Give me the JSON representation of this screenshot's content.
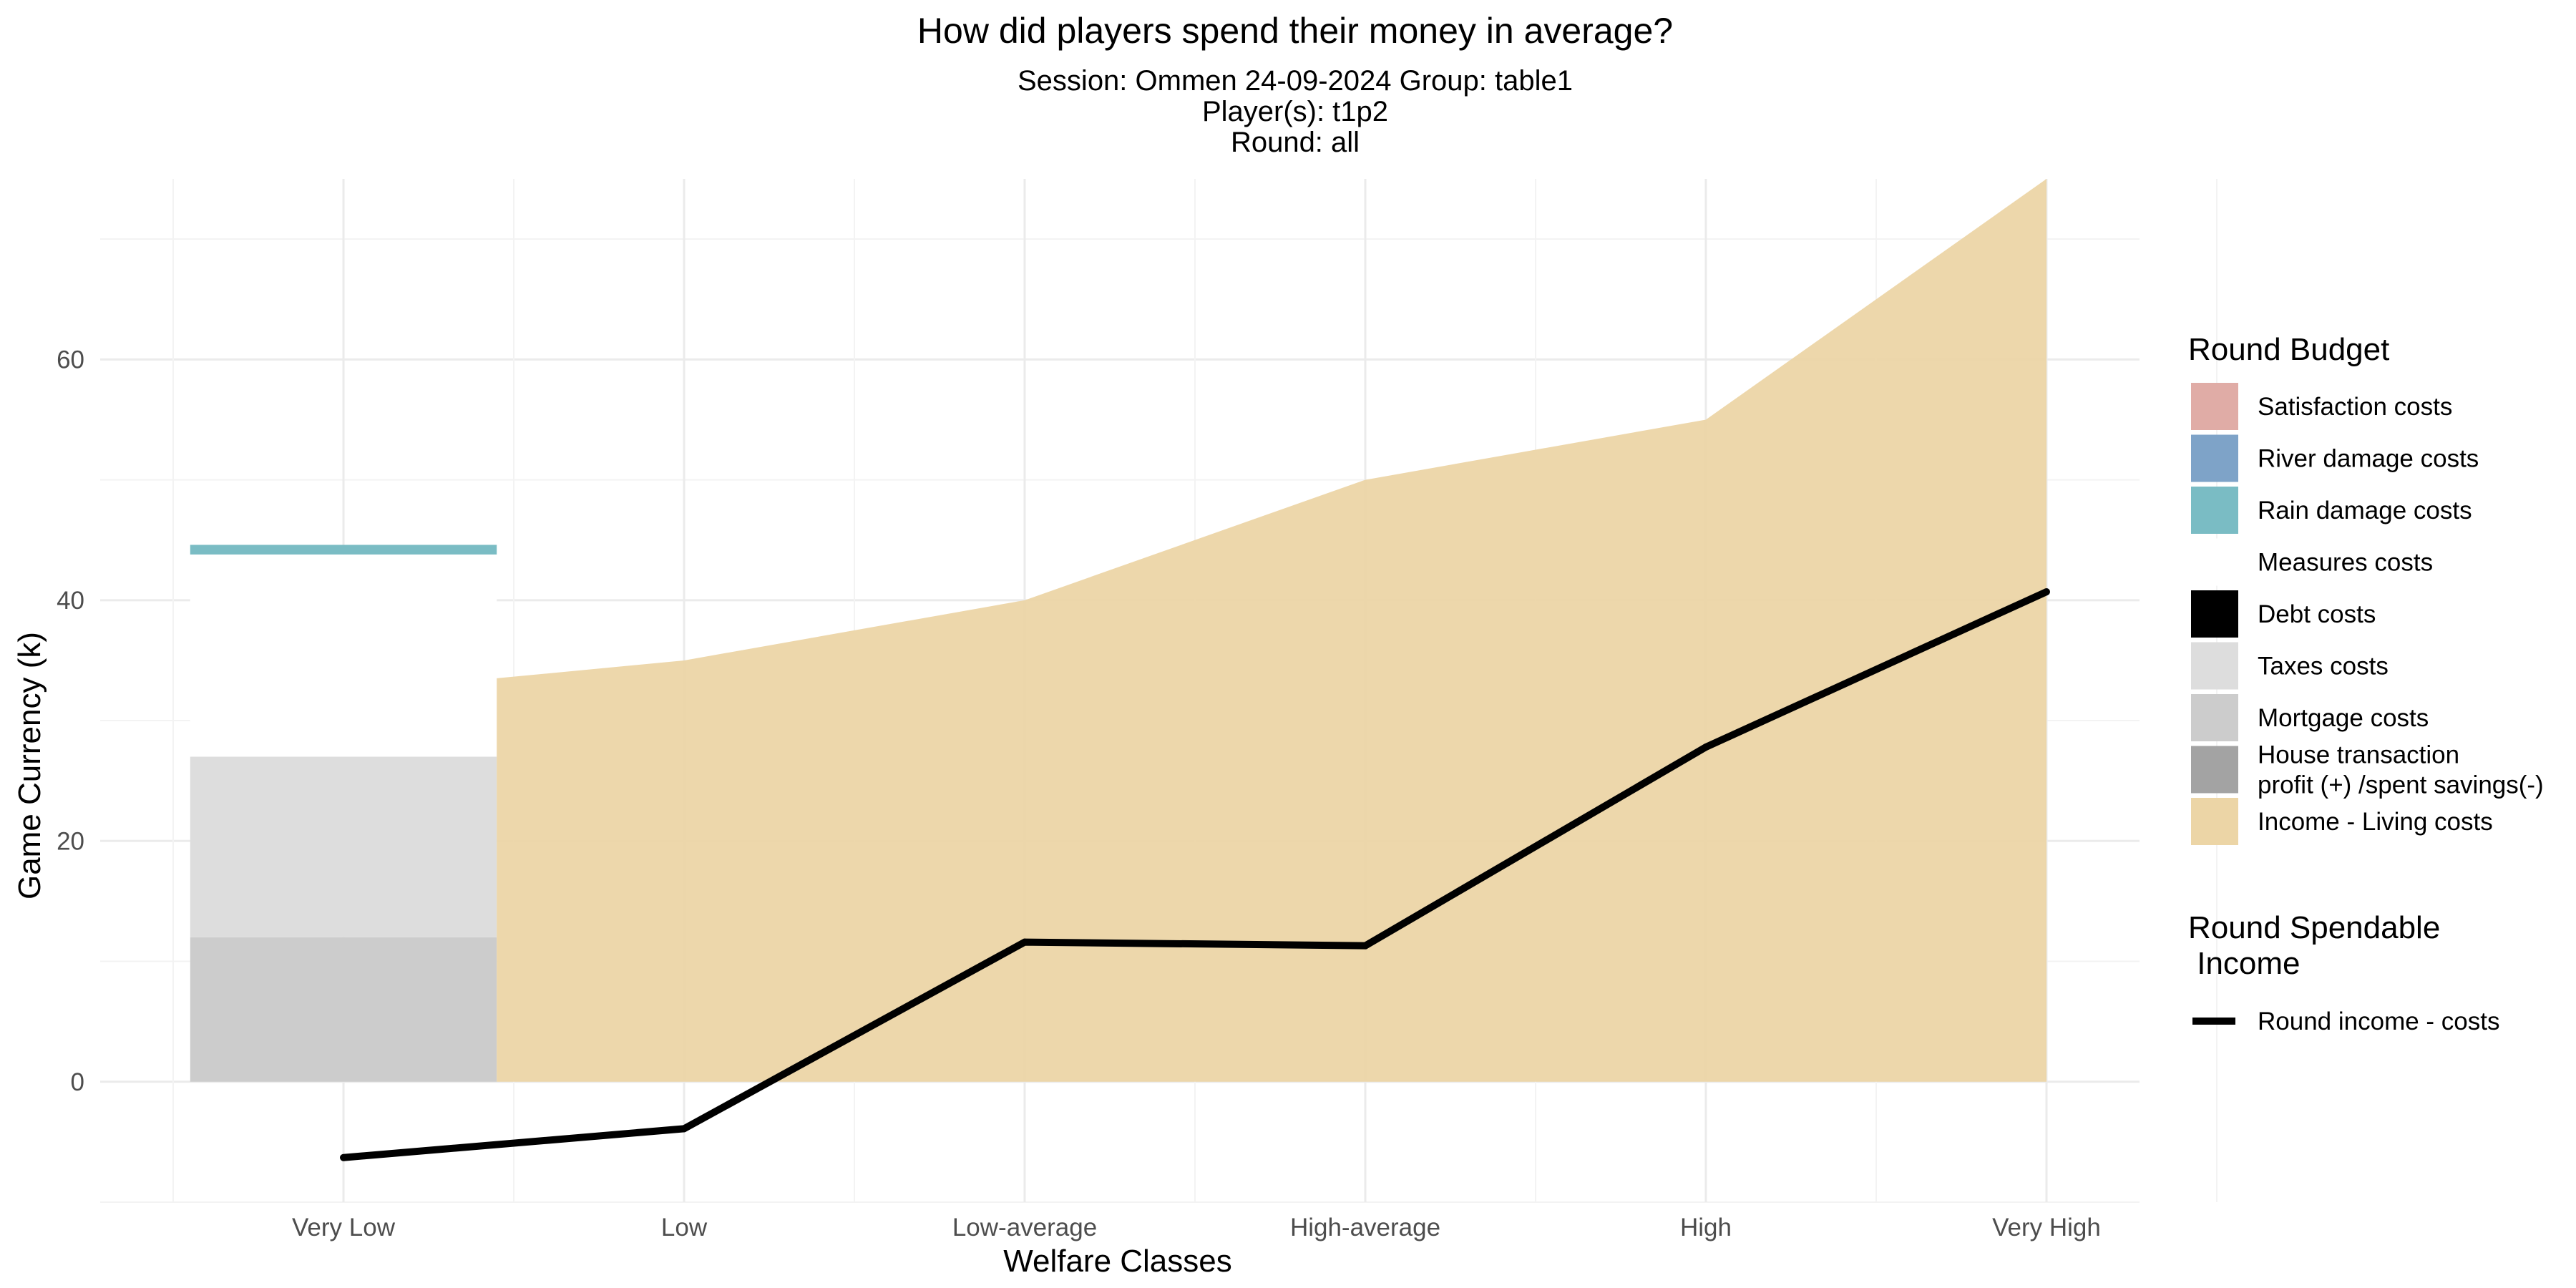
{
  "chart_data": {
    "type": "area",
    "title": "How did players spend their money in average?",
    "subtitle_lines": [
      "Session: Ommen 24-09-2024 Group: table1",
      "Player(s): t1p2",
      "Round: all"
    ],
    "xlabel": "Welfare Classes",
    "ylabel": "Game Currency (k)",
    "categories": [
      "Very Low",
      "Low",
      "Low-average",
      "High-average",
      "High",
      "Very High"
    ],
    "ylim": [
      -10,
      75
    ],
    "yticks": [
      0,
      20,
      40,
      60
    ],
    "grid": true,
    "stacked_bar": {
      "category": "Very Low",
      "segments": [
        {
          "name": "Mortgage costs",
          "bottom": 0,
          "top": 12,
          "color": "#cccccc"
        },
        {
          "name": "Taxes costs",
          "bottom": 12,
          "top": 27,
          "color": "#dddddd"
        },
        {
          "name": "Measures costs",
          "bottom": 27,
          "top": 43.8,
          "color": "#ffffff"
        },
        {
          "name": "Rain damage costs",
          "bottom": 43.8,
          "top": 44.6,
          "color": "#7abcc4"
        }
      ]
    },
    "area_series": {
      "name": "Income - Living costs",
      "color": "#ecd5a6",
      "x": [
        "Very Low",
        "Low",
        "Low-average",
        "High-average",
        "High",
        "Very High"
      ],
      "values": [
        32.3,
        35,
        40,
        50,
        55,
        75
      ]
    },
    "line_series": {
      "name": "Round income - costs",
      "color": "#000000",
      "x": [
        "Very Low",
        "Low",
        "Low-average",
        "High-average",
        "High",
        "Very High"
      ],
      "values": [
        -6.3,
        -3.9,
        11.6,
        11.3,
        27.8,
        40.7
      ]
    },
    "legend": {
      "placement": "right",
      "budget_title": "Round Budget",
      "budget_items": [
        {
          "label": "Satisfaction costs",
          "color": "#e0aca6"
        },
        {
          "label": "River damage costs",
          "color": "#7ea3c8"
        },
        {
          "label": "Rain damage costs",
          "color": "#7abcc4"
        },
        {
          "label": "Measures costs",
          "color": "#ffffff"
        },
        {
          "label": "Debt costs",
          "color": "#000000"
        },
        {
          "label": "Taxes costs",
          "color": "#dddddd"
        },
        {
          "label": "Mortgage costs",
          "color": "#cccccc"
        },
        {
          "label": "House transaction\nprofit (+) /spent savings(-)",
          "color": "#a3a3a3"
        },
        {
          "label": "Income - Living costs",
          "color": "#ecd5a6"
        }
      ],
      "spendable_title": "Round Spendable\n Income",
      "spendable_items": [
        {
          "label": "Round income - costs",
          "color": "#000000"
        }
      ]
    }
  }
}
